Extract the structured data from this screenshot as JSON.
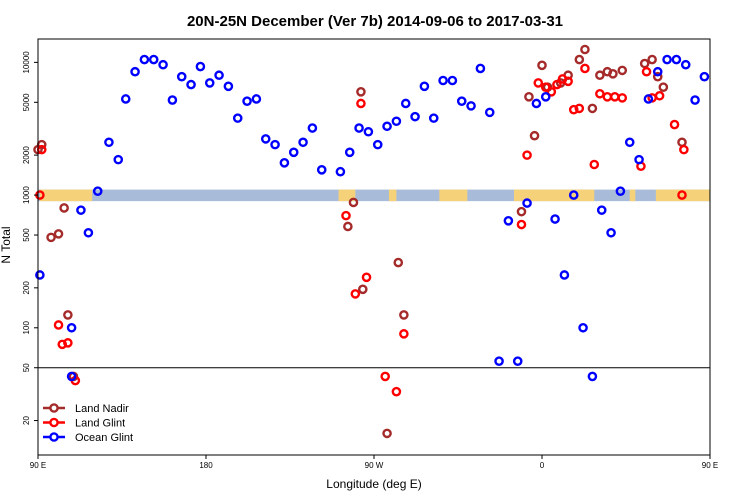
{
  "chart_data": {
    "type": "scatter",
    "title": "20N-25N December (Ver 7b)   2014-09-06 to 2017-03-31",
    "xlabel": "Longitude (deg E)",
    "ylabel": "N Total",
    "xscale": "linear",
    "yscale": "log",
    "xlim": [
      90,
      450
    ],
    "ylim": [
      11,
      15000
    ],
    "x_ticks": [
      {
        "value": 90,
        "label": "90 E"
      },
      {
        "value": 180,
        "label": "180"
      },
      {
        "value": 270,
        "label": "90 W"
      },
      {
        "value": 360,
        "label": "0"
      },
      {
        "value": 450,
        "label": "90 E"
      },
      {
        "value": 540,
        "label": "180"
      }
    ],
    "y_ticks": [
      {
        "value": 20,
        "label": "20"
      },
      {
        "value": 50,
        "label": "50"
      },
      {
        "value": 100,
        "label": "100"
      },
      {
        "value": 200,
        "label": "200"
      },
      {
        "value": 500,
        "label": "500"
      },
      {
        "value": 1000,
        "label": "1000"
      },
      {
        "value": 2000,
        "label": "2000"
      },
      {
        "value": 5000,
        "label": "5000"
      },
      {
        "value": 10000,
        "label": "10000"
      }
    ],
    "reference_line_y": 50,
    "land_band": {
      "y_range": [
        900,
        1100
      ],
      "ocean_color": "#a8bcd9",
      "land_color": "#f5d17a",
      "land_segments": [
        [
          91,
          119
        ],
        [
          251,
          260
        ],
        [
          278,
          282
        ],
        [
          305,
          320
        ],
        [
          345,
          388
        ],
        [
          407,
          410
        ],
        [
          421,
          463
        ],
        [
          478,
          488
        ],
        [
          494,
          498
        ],
        [
          531,
          533
        ]
      ]
    },
    "legend": {
      "position": "bottom-left"
    },
    "series": [
      {
        "name": "Land Nadir",
        "color": "#a52a2a",
        "points": [
          {
            "x": 90,
            "y": 2200
          },
          {
            "x": 92,
            "y": 2400
          },
          {
            "x": 97,
            "y": 480
          },
          {
            "x": 101,
            "y": 510
          },
          {
            "x": 104,
            "y": 800
          },
          {
            "x": 106,
            "y": 125
          },
          {
            "x": 109,
            "y": 43
          },
          {
            "x": 256,
            "y": 580
          },
          {
            "x": 259,
            "y": 880
          },
          {
            "x": 263,
            "y": 6000
          },
          {
            "x": 264,
            "y": 195
          },
          {
            "x": 277,
            "y": 16
          },
          {
            "x": 283,
            "y": 310
          },
          {
            "x": 286,
            "y": 125
          },
          {
            "x": 349,
            "y": 750
          },
          {
            "x": 353,
            "y": 5500
          },
          {
            "x": 356,
            "y": 2800
          },
          {
            "x": 360,
            "y": 9500
          },
          {
            "x": 363,
            "y": 6500
          },
          {
            "x": 370,
            "y": 7000
          },
          {
            "x": 374,
            "y": 8000
          },
          {
            "x": 380,
            "y": 10500
          },
          {
            "x": 383,
            "y": 12500
          },
          {
            "x": 387,
            "y": 4500
          },
          {
            "x": 391,
            "y": 8000
          },
          {
            "x": 395,
            "y": 8500
          },
          {
            "x": 398,
            "y": 8200
          },
          {
            "x": 403,
            "y": 8700
          },
          {
            "x": 415,
            "y": 9800
          },
          {
            "x": 419,
            "y": 10500
          },
          {
            "x": 422,
            "y": 7800
          },
          {
            "x": 425,
            "y": 6500
          },
          {
            "x": 435,
            "y": 2500
          },
          {
            "x": 451,
            "y": 480
          },
          {
            "x": 455,
            "y": 510
          },
          {
            "x": 458,
            "y": 800
          },
          {
            "x": 460,
            "y": 125
          },
          {
            "x": 464,
            "y": 43
          }
        ]
      },
      {
        "name": "Land Glint",
        "color": "#ff0000",
        "points": [
          {
            "x": 91,
            "y": 1000
          },
          {
            "x": 92,
            "y": 2200
          },
          {
            "x": 101,
            "y": 105
          },
          {
            "x": 103,
            "y": 75
          },
          {
            "x": 106,
            "y": 77
          },
          {
            "x": 110,
            "y": 40
          },
          {
            "x": 255,
            "y": 700
          },
          {
            "x": 260,
            "y": 180
          },
          {
            "x": 263,
            "y": 4900
          },
          {
            "x": 266,
            "y": 240
          },
          {
            "x": 276,
            "y": 43
          },
          {
            "x": 282,
            "y": 33
          },
          {
            "x": 286,
            "y": 90
          },
          {
            "x": 349,
            "y": 600
          },
          {
            "x": 352,
            "y": 2000
          },
          {
            "x": 358,
            "y": 7000
          },
          {
            "x": 362,
            "y": 6500
          },
          {
            "x": 365,
            "y": 6000
          },
          {
            "x": 368,
            "y": 6800
          },
          {
            "x": 371,
            "y": 7500
          },
          {
            "x": 374,
            "y": 7200
          },
          {
            "x": 377,
            "y": 4400
          },
          {
            "x": 380,
            "y": 4500
          },
          {
            "x": 383,
            "y": 9000
          },
          {
            "x": 388,
            "y": 1700
          },
          {
            "x": 391,
            "y": 5800
          },
          {
            "x": 395,
            "y": 5500
          },
          {
            "x": 399,
            "y": 5500
          },
          {
            "x": 403,
            "y": 5400
          },
          {
            "x": 413,
            "y": 1650
          },
          {
            "x": 416,
            "y": 8500
          },
          {
            "x": 419,
            "y": 5400
          },
          {
            "x": 423,
            "y": 5600
          },
          {
            "x": 431,
            "y": 3400
          },
          {
            "x": 436,
            "y": 2200
          },
          {
            "x": 435,
            "y": 1000
          },
          {
            "x": 455,
            "y": 105
          },
          {
            "x": 457,
            "y": 75
          },
          {
            "x": 460,
            "y": 77
          },
          {
            "x": 462,
            "y": 40
          }
        ]
      },
      {
        "name": "Ocean Glint",
        "color": "#0000ff",
        "points": [
          {
            "x": 91,
            "y": 250
          },
          {
            "x": 108,
            "y": 100
          },
          {
            "x": 108,
            "y": 43
          },
          {
            "x": 113,
            "y": 770
          },
          {
            "x": 117,
            "y": 520
          },
          {
            "x": 122,
            "y": 1070
          },
          {
            "x": 128,
            "y": 2500
          },
          {
            "x": 133,
            "y": 1850
          },
          {
            "x": 137,
            "y": 5300
          },
          {
            "x": 142,
            "y": 8500
          },
          {
            "x": 147,
            "y": 10500
          },
          {
            "x": 152,
            "y": 10500
          },
          {
            "x": 157,
            "y": 9600
          },
          {
            "x": 162,
            "y": 5200
          },
          {
            "x": 167,
            "y": 7800
          },
          {
            "x": 172,
            "y": 6800
          },
          {
            "x": 177,
            "y": 9300
          },
          {
            "x": 182,
            "y": 7000
          },
          {
            "x": 187,
            "y": 8000
          },
          {
            "x": 192,
            "y": 6600
          },
          {
            "x": 197,
            "y": 3800
          },
          {
            "x": 202,
            "y": 5100
          },
          {
            "x": 207,
            "y": 5300
          },
          {
            "x": 212,
            "y": 2650
          },
          {
            "x": 217,
            "y": 2400
          },
          {
            "x": 222,
            "y": 1750
          },
          {
            "x": 227,
            "y": 2100
          },
          {
            "x": 232,
            "y": 2500
          },
          {
            "x": 237,
            "y": 3200
          },
          {
            "x": 242,
            "y": 1550
          },
          {
            "x": 252,
            "y": 1500
          },
          {
            "x": 257,
            "y": 2100
          },
          {
            "x": 262,
            "y": 3200
          },
          {
            "x": 267,
            "y": 3000
          },
          {
            "x": 272,
            "y": 2400
          },
          {
            "x": 277,
            "y": 3300
          },
          {
            "x": 282,
            "y": 3600
          },
          {
            "x": 287,
            "y": 4900
          },
          {
            "x": 292,
            "y": 3900
          },
          {
            "x": 297,
            "y": 6600
          },
          {
            "x": 302,
            "y": 3800
          },
          {
            "x": 307,
            "y": 7300
          },
          {
            "x": 312,
            "y": 7300
          },
          {
            "x": 317,
            "y": 5100
          },
          {
            "x": 322,
            "y": 4700
          },
          {
            "x": 327,
            "y": 9000
          },
          {
            "x": 332,
            "y": 4200
          },
          {
            "x": 337,
            "y": 56
          },
          {
            "x": 342,
            "y": 640
          },
          {
            "x": 347,
            "y": 56
          },
          {
            "x": 352,
            "y": 870
          },
          {
            "x": 357,
            "y": 4900
          },
          {
            "x": 362,
            "y": 5500
          },
          {
            "x": 367,
            "y": 660
          },
          {
            "x": 372,
            "y": 250
          },
          {
            "x": 377,
            "y": 1000
          },
          {
            "x": 382,
            "y": 100
          },
          {
            "x": 387,
            "y": 43
          },
          {
            "x": 392,
            "y": 770
          },
          {
            "x": 397,
            "y": 520
          },
          {
            "x": 402,
            "y": 1070
          },
          {
            "x": 407,
            "y": 2500
          },
          {
            "x": 412,
            "y": 1850
          },
          {
            "x": 417,
            "y": 5300
          },
          {
            "x": 422,
            "y": 8500
          },
          {
            "x": 427,
            "y": 10500
          },
          {
            "x": 432,
            "y": 10500
          },
          {
            "x": 437,
            "y": 9600
          },
          {
            "x": 442,
            "y": 5200
          },
          {
            "x": 447,
            "y": 7800
          }
        ]
      }
    ]
  }
}
